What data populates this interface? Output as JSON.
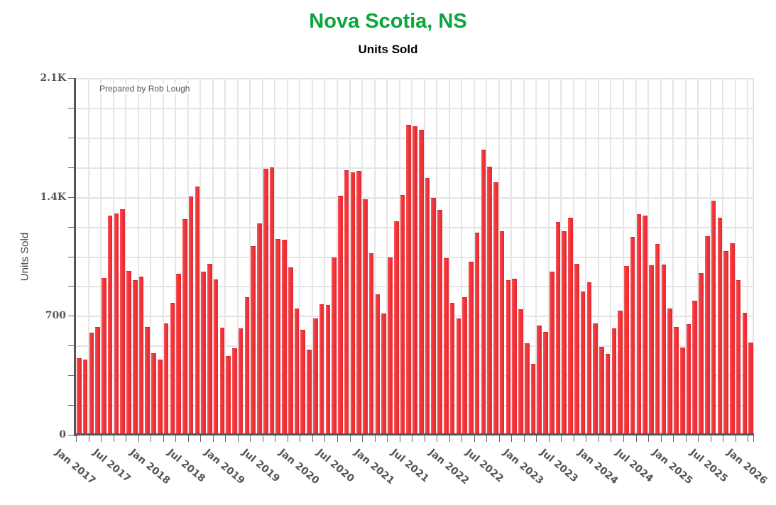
{
  "header": {
    "title": "Nova Scotia, NS",
    "subtitle": "Units Sold",
    "title_color": "#0aa63c"
  },
  "annotation": "Prepared by Rob Lough",
  "colors": {
    "bar": "#f0383d",
    "axis": "#555555",
    "grid": "#e3e3e3"
  },
  "chart_data": {
    "type": "bar",
    "title": "Nova Scotia, NS",
    "subtitle": "Units Sold",
    "xlabel": "",
    "ylabel": "Units Sold",
    "ylim": [
      0,
      2100
    ],
    "yticks": [
      0,
      700,
      1400,
      2100
    ],
    "ytick_labels": [
      "0",
      "700",
      "1.4K",
      "2.1K"
    ],
    "y_minor_step": 175,
    "grid": true,
    "legend": null,
    "annotation": "Prepared by Rob Lough",
    "xtick_labels": [
      "Jan 2017",
      "Jul 2017",
      "Jan 2018",
      "Jul 2018",
      "Jan 2019",
      "Jul 2019",
      "Jan 2020",
      "Jul 2020",
      "Jan 2021",
      "Jul 2021",
      "Jan 2022",
      "Jul 2022",
      "Jan 2023",
      "Jul 2023",
      "Jan 2024",
      "Jul 2024",
      "Jan 2025",
      "Jul 2025",
      "Jan 2026"
    ],
    "categories": [
      "Jan 2017",
      "Feb 2017",
      "Mar 2017",
      "Apr 2017",
      "May 2017",
      "Jun 2017",
      "Jul 2017",
      "Aug 2017",
      "Sep 2017",
      "Oct 2017",
      "Nov 2017",
      "Dec 2017",
      "Jan 2018",
      "Feb 2018",
      "Mar 2018",
      "Apr 2018",
      "May 2018",
      "Jun 2018",
      "Jul 2018",
      "Aug 2018",
      "Sep 2018",
      "Oct 2018",
      "Nov 2018",
      "Dec 2018",
      "Jan 2019",
      "Feb 2019",
      "Mar 2019",
      "Apr 2019",
      "May 2019",
      "Jun 2019",
      "Jul 2019",
      "Aug 2019",
      "Sep 2019",
      "Oct 2019",
      "Nov 2019",
      "Dec 2019",
      "Jan 2020",
      "Feb 2020",
      "Mar 2020",
      "Apr 2020",
      "May 2020",
      "Jun 2020",
      "Jul 2020",
      "Aug 2020",
      "Sep 2020",
      "Oct 2020",
      "Nov 2020",
      "Dec 2020",
      "Jan 2021",
      "Feb 2021",
      "Mar 2021",
      "Apr 2021",
      "May 2021",
      "Jun 2021",
      "Jul 2021",
      "Aug 2021",
      "Sep 2021",
      "Oct 2021",
      "Nov 2021",
      "Dec 2021",
      "Jan 2022",
      "Feb 2022",
      "Mar 2022",
      "Apr 2022",
      "May 2022",
      "Jun 2022",
      "Jul 2022",
      "Aug 2022",
      "Sep 2022",
      "Oct 2022",
      "Nov 2022",
      "Dec 2022",
      "Jan 2023",
      "Feb 2023",
      "Mar 2023",
      "Apr 2023",
      "May 2023",
      "Jun 2023",
      "Jul 2023",
      "Aug 2023",
      "Sep 2023",
      "Oct 2023",
      "Nov 2023",
      "Dec 2023",
      "Jan 2024",
      "Feb 2024",
      "Mar 2024",
      "Apr 2024",
      "May 2024",
      "Jun 2024",
      "Jul 2024",
      "Aug 2024",
      "Sep 2024",
      "Oct 2024",
      "Nov 2024",
      "Dec 2024",
      "Jan 2025",
      "Feb 2025",
      "Mar 2025",
      "Apr 2025",
      "May 2025",
      "Jun 2025",
      "Jul 2025",
      "Aug 2025",
      "Sep 2025",
      "Oct 2025",
      "Nov 2025",
      "Dec 2025",
      "Jan 2026"
    ],
    "values": [
      451,
      443,
      601,
      635,
      923,
      1290,
      1303,
      1328,
      964,
      910,
      931,
      635,
      480,
      443,
      655,
      777,
      948,
      1269,
      1403,
      1461,
      960,
      1006,
      914,
      630,
      463,
      509,
      626,
      810,
      1111,
      1244,
      1566,
      1574,
      1152,
      1148,
      985,
      743,
      618,
      501,
      685,
      768,
      764,
      1044,
      1407,
      1557,
      1545,
      1553,
      1386,
      1069,
      827,
      714,
      1044,
      1257,
      1411,
      1825,
      1816,
      1795,
      1511,
      1394,
      1323,
      1040,
      777,
      685,
      810,
      1019,
      1190,
      1678,
      1578,
      1486,
      1198,
      910,
      919,
      739,
      539,
      418,
      643,
      605,
      960,
      1253,
      1198,
      1278,
      1006,
      843,
      898,
      655,
      518,
      476,
      626,
      731,
      994,
      1165,
      1298,
      1290,
      998,
      1123,
      1002,
      743,
      635,
      514,
      651,
      789,
      952,
      1169,
      1378,
      1278,
      1081,
      1127,
      910,
      718,
      543
    ]
  }
}
